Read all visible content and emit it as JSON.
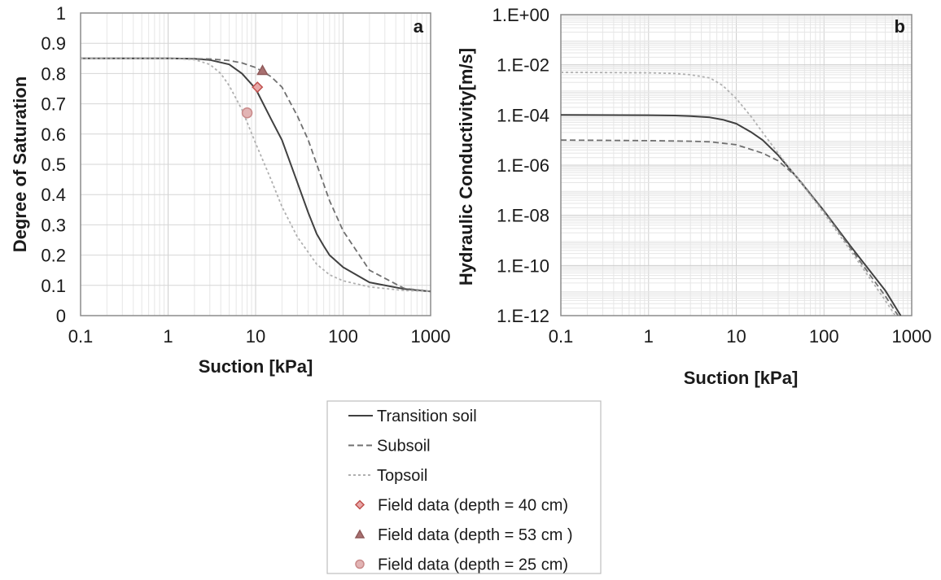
{
  "chart_data": [
    {
      "type": "line",
      "panel_label": "a",
      "xlabel": "Suction [kPa]",
      "ylabel": "Degree of Saturation",
      "xscale": "log",
      "xlim": [
        0.1,
        1000
      ],
      "ylim": [
        0,
        1
      ],
      "x_ticks": [
        "0.1",
        "1",
        "10",
        "100",
        "1000"
      ],
      "y_ticks": [
        "0",
        "0.1",
        "0.2",
        "0.3",
        "0.4",
        "0.5",
        "0.6",
        "0.7",
        "0.8",
        "0.9",
        "1"
      ],
      "grid": true,
      "series": [
        {
          "name": "Transition soil",
          "style": "solid",
          "color": "#404040",
          "x": [
            0.1,
            1,
            2,
            3,
            5,
            7,
            10,
            15,
            20,
            30,
            40,
            50,
            60,
            70,
            100,
            200,
            500,
            1000
          ],
          "y": [
            0.85,
            0.85,
            0.849,
            0.845,
            0.83,
            0.8,
            0.75,
            0.65,
            0.58,
            0.44,
            0.34,
            0.27,
            0.23,
            0.2,
            0.16,
            0.11,
            0.088,
            0.08
          ]
        },
        {
          "name": "Subsoil",
          "style": "dashed",
          "color": "#707070",
          "x": [
            0.1,
            1,
            3,
            5,
            7,
            10,
            15,
            20,
            30,
            40,
            50,
            70,
            100,
            200,
            500,
            1000
          ],
          "y": [
            0.85,
            0.85,
            0.848,
            0.843,
            0.835,
            0.82,
            0.79,
            0.755,
            0.66,
            0.58,
            0.5,
            0.38,
            0.28,
            0.15,
            0.09,
            0.08
          ]
        },
        {
          "name": "Topsoil",
          "style": "dotted",
          "color": "#b0b0b0",
          "x": [
            0.1,
            1,
            2,
            3,
            4,
            5,
            7,
            10,
            15,
            20,
            30,
            50,
            70,
            100,
            200,
            500,
            1000
          ],
          "y": [
            0.85,
            0.85,
            0.846,
            0.83,
            0.8,
            0.76,
            0.68,
            0.57,
            0.45,
            0.36,
            0.26,
            0.17,
            0.135,
            0.115,
            0.095,
            0.083,
            0.08
          ]
        },
        {
          "name": "Field data (depth = 40 cm)",
          "marker": "diamond",
          "color": "#c0504d",
          "fill": "#e8a8a8",
          "x": [
            10.5
          ],
          "y": [
            0.755
          ]
        },
        {
          "name": "Field data (depth = 53 cm )",
          "marker": "triangle",
          "color": "#8f5a5a",
          "fill": "#a87070",
          "x": [
            12
          ],
          "y": [
            0.81
          ]
        },
        {
          "name": "Field data (depth = 25 cm)",
          "marker": "circle",
          "color": "#c98a8a",
          "fill": "#e2b4b4",
          "x": [
            8
          ],
          "y": [
            0.67
          ]
        }
      ]
    },
    {
      "type": "line",
      "panel_label": "b",
      "xlabel": "Suction [kPa]",
      "ylabel": "Hydraulic Conductivity[m/s]",
      "xscale": "log",
      "yscale": "log",
      "xlim": [
        0.1,
        1000
      ],
      "ylim": [
        1e-12,
        1
      ],
      "x_ticks": [
        "0.1",
        "1",
        "10",
        "100",
        "1000"
      ],
      "y_ticks": [
        "1.E-12",
        "1.E-10",
        "1.E-08",
        "1.E-06",
        "1.E-04",
        "1.E-02",
        "1.E+00"
      ],
      "grid": true,
      "series": [
        {
          "name": "Transition soil",
          "style": "solid",
          "color": "#404040",
          "x": [
            0.1,
            1,
            2,
            3,
            5,
            7,
            10,
            15,
            20,
            30,
            50,
            100,
            200,
            500,
            750
          ],
          "y": [
            0.0001,
            9.8e-05,
            9.5e-05,
            9e-05,
            8e-05,
            6.5e-05,
            4.5e-05,
            2e-05,
            1e-05,
            2.5e-06,
            3e-07,
            1.5e-08,
            6e-10,
            1e-11,
            1e-12
          ]
        },
        {
          "name": "Subsoil",
          "style": "dashed",
          "color": "#707070",
          "x": [
            0.1,
            1,
            3,
            5,
            10,
            20,
            30,
            50,
            100,
            200,
            500,
            700
          ],
          "y": [
            1e-05,
            9.5e-06,
            9e-06,
            8.5e-06,
            6.5e-06,
            3e-06,
            1.5e-06,
            3.2e-07,
            1.5e-08,
            5e-10,
            6e-12,
            1e-12
          ]
        },
        {
          "name": "Topsoil",
          "style": "dotted",
          "color": "#b0b0b0",
          "x": [
            0.1,
            1,
            2,
            3,
            5,
            7,
            10,
            15,
            20,
            30,
            50,
            100,
            200,
            500,
            650
          ],
          "y": [
            0.005,
            0.0048,
            0.0045,
            0.004,
            0.003,
            0.0015,
            0.00045,
            8e-05,
            2e-05,
            3e-06,
            3e-07,
            1.2e-08,
            4e-10,
            4e-12,
            1e-12
          ]
        }
      ]
    }
  ],
  "legend": {
    "items": [
      {
        "label": "Transition soil",
        "kind": "line",
        "style": "solid",
        "color": "#404040"
      },
      {
        "label": "Subsoil",
        "kind": "line",
        "style": "dashed",
        "color": "#707070"
      },
      {
        "label": "Topsoil",
        "kind": "line",
        "style": "dotted",
        "color": "#b0b0b0"
      },
      {
        "label": "Field data (depth = 40 cm)",
        "kind": "marker",
        "marker": "diamond",
        "color": "#c0504d",
        "fill": "#e8a8a8"
      },
      {
        "label": "Field data (depth = 53 cm )",
        "kind": "marker",
        "marker": "triangle",
        "color": "#8f5a5a",
        "fill": "#a87070"
      },
      {
        "label": "Field data (depth = 25 cm)",
        "kind": "marker",
        "marker": "circle",
        "color": "#c98a8a",
        "fill": "#e2b4b4"
      }
    ]
  }
}
